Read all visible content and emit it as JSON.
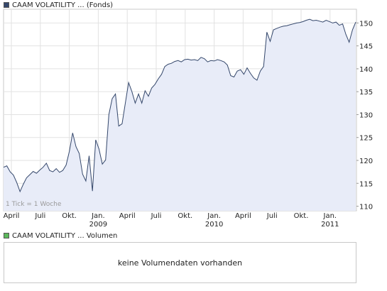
{
  "price_legend": {
    "label": "CAAM VOLATILITY ... (Fonds)",
    "color": "#34476b"
  },
  "volume_legend": {
    "label": "CAAM VOLATILITY ... Volumen",
    "color": "#5cb85c"
  },
  "tick_note": "1 Tick = 1 Woche",
  "volume_message": "keine Volumendaten vorhanden",
  "chart_data": [
    {
      "type": "area",
      "series": [
        {
          "name": "CAAM VOLATILITY ... (Fonds)",
          "values": [
            118.5,
            118.8,
            117.5,
            116.8,
            115.2,
            113.2,
            114.8,
            116.2,
            116.9,
            117.6,
            117.2,
            117.9,
            118.5,
            119.4,
            117.8,
            117.5,
            118.2,
            117.4,
            117.8,
            119.0,
            122.0,
            126.0,
            123.0,
            121.5,
            117.0,
            115.5,
            121.0,
            113.3,
            124.5,
            122.5,
            119.2,
            120.1,
            130.0,
            133.5,
            134.5,
            127.5,
            128.0,
            132.5,
            137.0,
            135.0,
            132.5,
            134.5,
            132.5,
            135.2,
            134.0,
            135.8,
            136.6,
            137.8,
            138.8,
            140.5,
            141.0,
            141.2,
            141.6,
            141.8,
            141.5,
            142.0,
            142.1,
            141.9,
            142.0,
            141.8,
            142.5,
            142.2,
            141.5,
            141.8,
            141.7,
            142.0,
            141.8,
            141.5,
            140.8,
            138.5,
            138.2,
            139.5,
            139.8,
            138.8,
            140.2,
            139.0,
            138.0,
            137.5,
            139.5,
            140.5,
            148.0,
            146.0,
            148.5,
            148.8,
            149.1,
            149.3,
            149.4,
            149.6,
            149.8,
            150.0,
            150.1,
            150.3,
            150.6,
            150.8,
            150.5,
            150.6,
            150.4,
            150.2,
            150.6,
            150.3,
            150.0,
            150.2,
            149.5,
            149.8,
            147.5,
            145.8,
            148.5,
            150.2
          ]
        }
      ],
      "x_tick_labels": [
        "April",
        "Juli",
        "Okt.",
        "Jan.",
        "April",
        "Juli",
        "Okt.",
        "Jan.",
        "April",
        "Juli",
        "Okt.",
        "Jan."
      ],
      "x_year_labels": [
        "2009",
        "2010",
        "2011"
      ],
      "y_ticks": [
        110,
        115,
        120,
        125,
        130,
        135,
        140,
        145,
        150
      ],
      "ylim": [
        109,
        153
      ],
      "grid": true,
      "line_color": "#34476b",
      "fill_color": "#e8ecf8"
    }
  ]
}
